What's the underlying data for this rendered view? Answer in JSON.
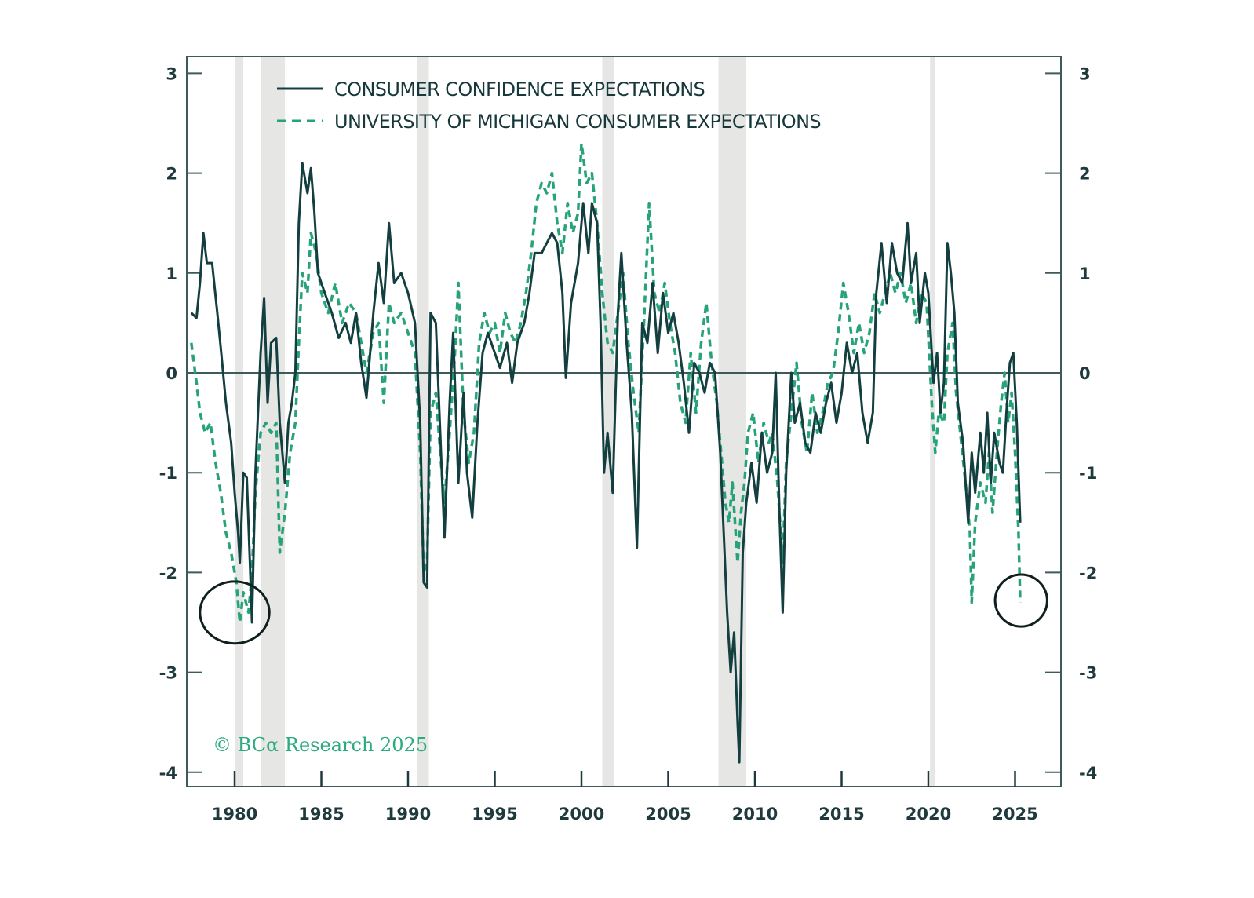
{
  "chart_data": {
    "type": "line",
    "title": "",
    "xlabel": "",
    "ylabel": "",
    "xlim": [
      1977.3,
      2027.6
    ],
    "ylim": [
      -4.2,
      3.15
    ],
    "x_ticks": [
      1980,
      1985,
      1990,
      1995,
      2000,
      2005,
      2010,
      2015,
      2020,
      2025
    ],
    "x_tick_labels": [
      "1980",
      "1985",
      "1990",
      "1995",
      "2000",
      "2005",
      "2010",
      "2015",
      "2020",
      "2025"
    ],
    "y_ticks": [
      3,
      2,
      1,
      0,
      -1,
      -2,
      -3,
      -4
    ],
    "y_tick_labels": [
      "3",
      "2",
      "1",
      "0",
      "-1",
      "-2",
      "-3",
      "-4"
    ],
    "zero_line": true,
    "grid": false,
    "legend_position": "top-left",
    "colors": {
      "solid": "#143f40",
      "dashed": "#27a37a",
      "recession": "#e6e6e4",
      "axis": "#3f5a5c",
      "annotation": "#0f1f20"
    },
    "recessions": [
      [
        1980.0,
        1980.5
      ],
      [
        1981.5,
        1982.9
      ],
      [
        1990.5,
        1991.2
      ],
      [
        2001.2,
        2001.9
      ],
      [
        2007.9,
        2009.5
      ],
      [
        2020.1,
        2020.4
      ]
    ],
    "annotations": [
      {
        "type": "circle",
        "x": 1980.0,
        "y": -2.4,
        "rx_years": 2.0,
        "ry_units": 0.31
      },
      {
        "type": "circle",
        "x": 2025.35,
        "y": -2.28,
        "rx_years": 1.5,
        "ry_units": 0.26
      }
    ],
    "watermark": "© BCα Research 2025",
    "series": [
      {
        "name": "CONSUMER CONFIDENCE EXPECTATIONS",
        "style": "solid",
        "x": [
          1977.5,
          1977.8,
          1978.0,
          1978.2,
          1978.4,
          1978.7,
          1979.0,
          1979.2,
          1979.5,
          1979.8,
          1980.0,
          1980.2,
          1980.3,
          1980.5,
          1980.7,
          1980.9,
          1981.0,
          1981.2,
          1981.5,
          1981.7,
          1981.9,
          1982.1,
          1982.4,
          1982.6,
          1982.9,
          1983.1,
          1983.3,
          1983.5,
          1983.7,
          1983.9,
          1984.2,
          1984.4,
          1984.6,
          1984.8,
          1985.2,
          1985.6,
          1986.0,
          1986.4,
          1986.7,
          1987.0,
          1987.3,
          1987.6,
          1988.0,
          1988.3,
          1988.6,
          1988.9,
          1989.2,
          1989.6,
          1990.0,
          1990.4,
          1990.7,
          1990.9,
          1991.1,
          1991.3,
          1991.6,
          1991.9,
          1992.1,
          1992.4,
          1992.6,
          1992.9,
          1993.2,
          1993.4,
          1993.7,
          1994.0,
          1994.3,
          1994.6,
          1995.0,
          1995.3,
          1995.7,
          1996.0,
          1996.3,
          1996.7,
          1997.0,
          1997.3,
          1997.7,
          1998.0,
          1998.3,
          1998.6,
          1998.9,
          1999.1,
          1999.4,
          1999.8,
          2000.1,
          2000.4,
          2000.6,
          2000.9,
          2001.1,
          2001.3,
          2001.5,
          2001.8,
          2002.1,
          2002.3,
          2002.6,
          2002.9,
          2003.2,
          2003.5,
          2003.8,
          2004.1,
          2004.4,
          2004.7,
          2005.0,
          2005.3,
          2005.6,
          2005.9,
          2006.2,
          2006.5,
          2006.8,
          2007.1,
          2007.4,
          2007.7,
          2008.0,
          2008.2,
          2008.4,
          2008.6,
          2008.8,
          2009.0,
          2009.1,
          2009.3,
          2009.5,
          2009.8,
          2010.1,
          2010.4,
          2010.7,
          2011.0,
          2011.2,
          2011.4,
          2011.6,
          2011.8,
          2012.1,
          2012.3,
          2012.6,
          2012.9,
          2013.2,
          2013.5,
          2013.8,
          2014.1,
          2014.4,
          2014.7,
          2015.0,
          2015.3,
          2015.6,
          2015.9,
          2016.2,
          2016.5,
          2016.8,
          2017.0,
          2017.3,
          2017.6,
          2017.9,
          2018.2,
          2018.5,
          2018.8,
          2019.0,
          2019.3,
          2019.5,
          2019.8,
          2020.0,
          2020.3,
          2020.5,
          2020.7,
          2020.9,
          2021.1,
          2021.3,
          2021.5,
          2021.7,
          2022.0,
          2022.3,
          2022.5,
          2022.7,
          2023.0,
          2023.2,
          2023.4,
          2023.6,
          2023.8,
          2024.1,
          2024.3,
          2024.5,
          2024.7,
          2024.9,
          2025.1,
          2025.3
        ],
        "values": [
          0.6,
          0.55,
          0.9,
          1.4,
          1.1,
          1.1,
          0.6,
          0.25,
          -0.3,
          -0.7,
          -1.2,
          -1.6,
          -1.9,
          -1.0,
          -1.05,
          -2.0,
          -2.5,
          -1.0,
          0.2,
          0.75,
          -0.3,
          0.3,
          0.35,
          -0.5,
          -1.1,
          -0.5,
          -0.3,
          0.0,
          1.5,
          2.1,
          1.8,
          2.05,
          1.6,
          1.0,
          0.8,
          0.6,
          0.35,
          0.5,
          0.3,
          0.6,
          0.1,
          -0.25,
          0.6,
          1.1,
          0.7,
          1.5,
          0.9,
          1.0,
          0.8,
          0.5,
          -0.5,
          -2.1,
          -2.15,
          0.6,
          0.5,
          -0.8,
          -1.65,
          -0.3,
          0.4,
          -1.1,
          -0.2,
          -1.0,
          -1.45,
          -0.5,
          0.2,
          0.4,
          0.2,
          0.05,
          0.3,
          -0.1,
          0.3,
          0.5,
          0.8,
          1.2,
          1.2,
          1.3,
          1.4,
          1.3,
          0.8,
          -0.05,
          0.7,
          1.1,
          1.7,
          1.2,
          1.7,
          1.5,
          0.5,
          -1.0,
          -0.6,
          -1.2,
          0.6,
          1.2,
          0.3,
          -0.4,
          -1.75,
          0.5,
          0.3,
          0.9,
          0.2,
          0.8,
          0.4,
          0.6,
          0.3,
          -0.1,
          -0.6,
          0.1,
          0.0,
          -0.2,
          0.1,
          0.0,
          -0.8,
          -1.6,
          -2.4,
          -3.0,
          -2.6,
          -3.5,
          -3.9,
          -1.8,
          -1.3,
          -0.9,
          -1.3,
          -0.6,
          -1.0,
          -0.8,
          0.0,
          -1.3,
          -2.4,
          -1.0,
          0.0,
          -0.5,
          -0.3,
          -0.7,
          -0.8,
          -0.4,
          -0.6,
          -0.3,
          -0.1,
          -0.5,
          -0.2,
          0.3,
          0.0,
          0.2,
          -0.4,
          -0.7,
          -0.4,
          0.8,
          1.3,
          0.7,
          1.3,
          1.0,
          0.9,
          1.5,
          0.9,
          1.2,
          0.5,
          1.0,
          0.8,
          -0.1,
          0.2,
          -0.4,
          -0.1,
          1.3,
          1.0,
          0.6,
          -0.3,
          -0.7,
          -1.5,
          -0.8,
          -1.2,
          -0.6,
          -1.0,
          -0.4,
          -1.1,
          -0.6,
          -0.9,
          -1.0,
          -0.4,
          0.1,
          0.2,
          -0.5,
          -1.5
        ]
      },
      {
        "name": "UNIVERSITY OF MICHIGAN CONSUMER EXPECTATIONS",
        "style": "dashed",
        "x": [
          1977.5,
          1977.8,
          1978.0,
          1978.3,
          1978.6,
          1978.9,
          1979.2,
          1979.5,
          1979.8,
          1980.1,
          1980.3,
          1980.5,
          1980.8,
          1981.0,
          1981.2,
          1981.5,
          1981.8,
          1982.1,
          1982.4,
          1982.6,
          1982.9,
          1983.2,
          1983.5,
          1983.7,
          1983.9,
          1984.2,
          1984.4,
          1984.7,
          1985.0,
          1985.4,
          1985.8,
          1986.2,
          1986.6,
          1987.0,
          1987.3,
          1987.6,
          1988.0,
          1988.3,
          1988.6,
          1988.9,
          1989.2,
          1989.6,
          1990.0,
          1990.4,
          1990.7,
          1990.9,
          1991.1,
          1991.3,
          1991.6,
          1991.9,
          1992.1,
          1992.4,
          1992.7,
          1992.9,
          1993.2,
          1993.5,
          1993.8,
          1994.1,
          1994.4,
          1994.7,
          1995.0,
          1995.3,
          1995.6,
          1995.9,
          1996.2,
          1996.5,
          1996.8,
          1997.1,
          1997.4,
          1997.7,
          1998.0,
          1998.3,
          1998.6,
          1998.9,
          1999.2,
          1999.5,
          1999.8,
          2000.0,
          2000.3,
          2000.6,
          2000.9,
          2001.2,
          2001.5,
          2001.8,
          2002.1,
          2002.4,
          2002.7,
          2003.0,
          2003.3,
          2003.6,
          2003.9,
          2004.2,
          2004.5,
          2004.8,
          2005.1,
          2005.4,
          2005.7,
          2006.0,
          2006.3,
          2006.6,
          2006.9,
          2007.2,
          2007.5,
          2007.8,
          2008.1,
          2008.3,
          2008.5,
          2008.7,
          2009.0,
          2009.2,
          2009.4,
          2009.6,
          2009.9,
          2010.2,
          2010.5,
          2010.8,
          2011.0,
          2011.3,
          2011.6,
          2011.8,
          2012.1,
          2012.4,
          2012.7,
          2013.0,
          2013.3,
          2013.6,
          2013.9,
          2014.2,
          2014.5,
          2014.8,
          2015.1,
          2015.4,
          2015.7,
          2016.0,
          2016.3,
          2016.6,
          2016.9,
          2017.2,
          2017.5,
          2017.8,
          2018.1,
          2018.4,
          2018.7,
          2019.0,
          2019.3,
          2019.6,
          2019.9,
          2020.2,
          2020.4,
          2020.6,
          2020.9,
          2021.1,
          2021.4,
          2021.6,
          2021.9,
          2022.2,
          2022.4,
          2022.5,
          2022.7,
          2023.0,
          2023.3,
          2023.5,
          2023.7,
          2024.0,
          2024.2,
          2024.4,
          2024.6,
          2024.8,
          2025.0,
          2025.2,
          2025.3
        ],
        "values": [
          0.3,
          -0.1,
          -0.4,
          -0.6,
          -0.5,
          -0.9,
          -1.2,
          -1.6,
          -1.8,
          -2.1,
          -2.5,
          -2.2,
          -2.4,
          -2.0,
          -1.2,
          -0.6,
          -0.5,
          -0.6,
          -0.5,
          -1.8,
          -1.4,
          -0.8,
          -0.5,
          0.3,
          1.0,
          0.8,
          1.4,
          1.2,
          0.8,
          0.6,
          0.9,
          0.5,
          0.7,
          0.6,
          0.3,
          0.0,
          0.4,
          0.5,
          -0.3,
          0.7,
          0.5,
          0.6,
          0.4,
          0.2,
          -0.8,
          -2.0,
          -1.9,
          -0.4,
          -0.2,
          -0.9,
          -1.3,
          -0.6,
          0.2,
          0.9,
          -0.4,
          -0.9,
          -0.6,
          0.3,
          0.6,
          0.4,
          0.5,
          0.2,
          0.6,
          0.4,
          0.3,
          0.5,
          0.8,
          1.2,
          1.7,
          1.9,
          1.8,
          2.0,
          1.5,
          1.2,
          1.7,
          1.4,
          1.6,
          2.3,
          1.9,
          2.0,
          1.5,
          0.8,
          0.3,
          0.2,
          0.6,
          1.0,
          0.3,
          -0.2,
          -0.6,
          0.5,
          1.7,
          0.8,
          0.6,
          0.9,
          0.5,
          0.2,
          -0.3,
          -0.5,
          0.2,
          -0.4,
          0.3,
          0.7,
          0.1,
          -0.3,
          -0.9,
          -1.3,
          -1.5,
          -1.1,
          -1.9,
          -1.4,
          -1.1,
          -0.6,
          -0.4,
          -0.9,
          -0.5,
          -0.7,
          -0.6,
          -1.1,
          -1.9,
          -0.9,
          -0.4,
          0.1,
          -0.5,
          -0.8,
          -0.2,
          -0.6,
          -0.4,
          -0.1,
          0.0,
          0.4,
          0.9,
          0.6,
          0.2,
          0.5,
          0.2,
          0.4,
          0.8,
          0.6,
          0.8,
          1.0,
          0.8,
          1.0,
          0.7,
          0.9,
          0.5,
          0.8,
          0.7,
          -0.3,
          -0.8,
          -0.4,
          -0.5,
          0.2,
          0.5,
          -0.2,
          -0.7,
          -1.2,
          -1.6,
          -2.3,
          -1.5,
          -1.1,
          -1.3,
          -0.8,
          -1.4,
          -0.7,
          -0.3,
          0.0,
          -0.5,
          -0.2,
          -0.8,
          -1.6,
          -2.3
        ]
      }
    ]
  }
}
